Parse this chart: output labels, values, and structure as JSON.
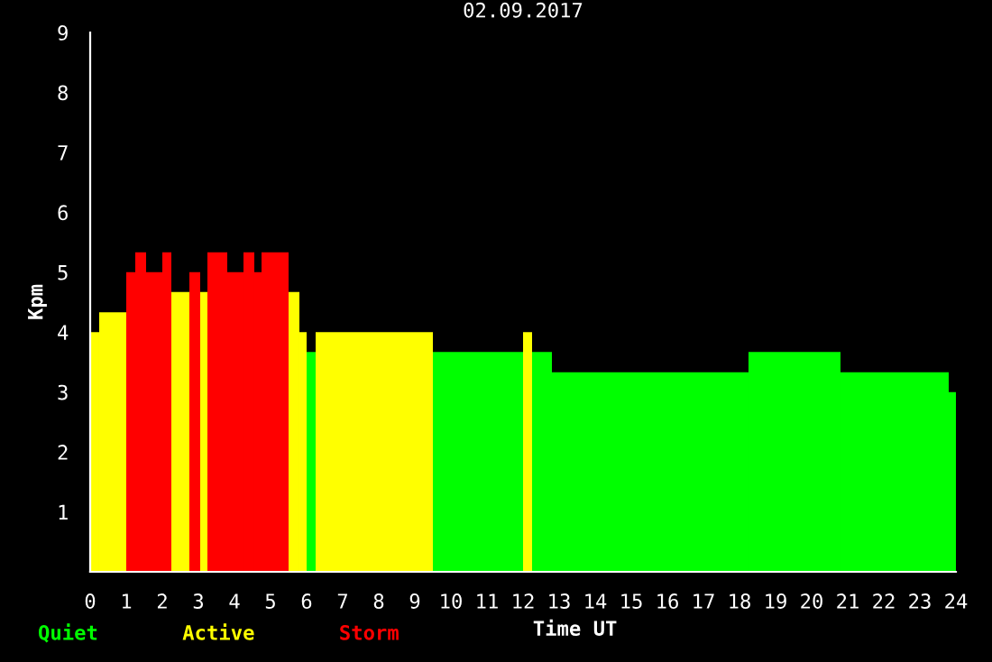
{
  "chart_data": {
    "type": "histogram",
    "title": "02.09.2017",
    "xlabel": "Time UT",
    "ylabel": "Kpm",
    "bins": [
      0,
      0.25,
      1.0,
      1.25,
      1.55,
      2.0,
      2.25,
      2.75,
      3.05,
      3.25,
      3.8,
      4.25,
      4.55,
      4.75,
      5.5,
      5.8,
      6.0,
      6.25,
      9.5,
      12.0,
      12.25,
      12.8,
      18.25,
      20.8,
      23.8,
      24.0
    ],
    "series": [
      {
        "name": "Quiet",
        "color": "#00ff00",
        "values": [
          null,
          null,
          null,
          null,
          null,
          null,
          null,
          null,
          null,
          null,
          null,
          null,
          null,
          null,
          null,
          null,
          3.67,
          null,
          3.67,
          null,
          3.67,
          3.33,
          3.67,
          3.33,
          3.0
        ]
      },
      {
        "name": "Active",
        "color": "#ffff00",
        "values": [
          4.0,
          4.33,
          null,
          null,
          null,
          null,
          4.67,
          null,
          4.67,
          null,
          null,
          null,
          null,
          null,
          4.67,
          4.0,
          null,
          4.0,
          null,
          4.0,
          null,
          null,
          null,
          null,
          null
        ]
      },
      {
        "name": "Storm",
        "color": "#ff0000",
        "values": [
          null,
          null,
          5.0,
          5.33,
          5.0,
          5.33,
          null,
          5.0,
          null,
          5.33,
          5.0,
          5.33,
          5.0,
          5.33,
          null,
          null,
          null,
          null,
          null,
          null,
          null,
          null,
          null,
          null,
          null
        ]
      }
    ],
    "xlim": [
      0,
      24
    ],
    "xticks": [
      0,
      1,
      2,
      3,
      4,
      5,
      6,
      7,
      8,
      9,
      10,
      11,
      12,
      13,
      14,
      15,
      16,
      17,
      18,
      19,
      20,
      21,
      22,
      23,
      24
    ],
    "ylim": [
      0,
      9
    ],
    "yticks": [
      1,
      2,
      3,
      4,
      5,
      6,
      7,
      8,
      9
    ],
    "grid": false,
    "legend": "bottom left"
  }
}
